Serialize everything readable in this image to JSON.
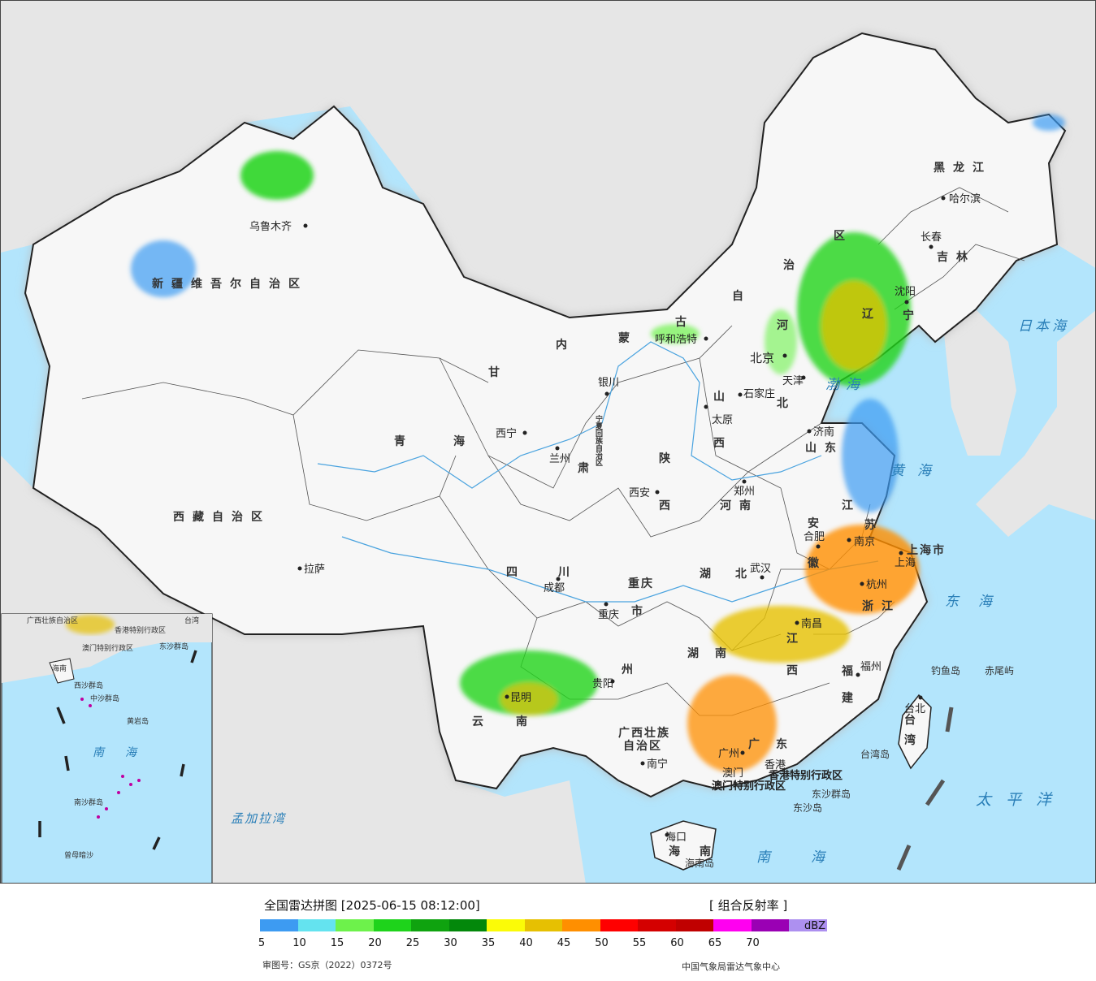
{
  "colors": {
    "ocean": "#b3e5fc",
    "foreign_land": "#e6e6e6",
    "china_land": "#f7f7f7",
    "border": "#222222",
    "river": "#4aa3df"
  },
  "legend": {
    "title": "全国雷达拼图 [2025-06-15 08:12:00]",
    "product": "[ 组合反射率 ]",
    "unit": "dBZ",
    "ticks": [
      "5",
      "10",
      "15",
      "20",
      "25",
      "30",
      "35",
      "40",
      "45",
      "50",
      "55",
      "60",
      "65",
      "70"
    ],
    "colors": [
      "#3d9bf2",
      "#64e3ef",
      "#6df24b",
      "#1ed31b",
      "#0fa30f",
      "#03880b",
      "#fbfb07",
      "#e6c002",
      "#ff8f00",
      "#ff0000",
      "#d40000",
      "#c00000",
      "#ff00f0",
      "#9a00b4",
      "#ad90f0"
    ],
    "approval": "审图号：GS京（2022）0372号",
    "producer": "中国气象局雷达气象中心"
  },
  "map": {
    "provinces": [
      {
        "id": "xinjiang",
        "text": "新疆维吾尔自治区"
      },
      {
        "id": "xizang",
        "text": "西藏自治区"
      },
      {
        "id": "qinghai-1",
        "text": "青"
      },
      {
        "id": "qinghai-2",
        "text": "海"
      },
      {
        "id": "gansu-1",
        "text": "甘"
      },
      {
        "id": "gansu-2",
        "text": "肃"
      },
      {
        "id": "neimenggu-1",
        "text": "内"
      },
      {
        "id": "neimenggu-2",
        "text": "蒙"
      },
      {
        "id": "neimenggu-3",
        "text": "古"
      },
      {
        "id": "neimenggu-4",
        "text": "自"
      },
      {
        "id": "neimenggu-5",
        "text": "治"
      },
      {
        "id": "neimenggu-6",
        "text": "区"
      },
      {
        "id": "heilongjiang",
        "text": "黑龙江"
      },
      {
        "id": "jilin",
        "text": "吉林"
      },
      {
        "id": "liaoning-1",
        "text": "辽"
      },
      {
        "id": "liaoning-2",
        "text": "宁"
      },
      {
        "id": "hebei-1",
        "text": "河"
      },
      {
        "id": "hebei-2",
        "text": "北"
      },
      {
        "id": "shanxi-1",
        "text": "山"
      },
      {
        "id": "shanxi-2",
        "text": "西"
      },
      {
        "id": "shaanxi-1",
        "text": "陕"
      },
      {
        "id": "shaanxi-2",
        "text": "西"
      },
      {
        "id": "shandong",
        "text": "山东"
      },
      {
        "id": "henan",
        "text": "河南"
      },
      {
        "id": "jiangsu-1",
        "text": "江"
      },
      {
        "id": "jiangsu-2",
        "text": "苏"
      },
      {
        "id": "anhui-1",
        "text": "安"
      },
      {
        "id": "anhui-2",
        "text": "徽"
      },
      {
        "id": "shanghai",
        "text": "上海市"
      },
      {
        "id": "zhejiang",
        "text": "浙江"
      },
      {
        "id": "hubei",
        "text": "湖北"
      },
      {
        "id": "hunan",
        "text": "湖南"
      },
      {
        "id": "jiangxi-1",
        "text": "江"
      },
      {
        "id": "jiangxi-2",
        "text": "西"
      },
      {
        "id": "fujian-1",
        "text": "福"
      },
      {
        "id": "fujian-2",
        "text": "建"
      },
      {
        "id": "taiwan-1",
        "text": "台"
      },
      {
        "id": "taiwan-2",
        "text": "湾"
      },
      {
        "id": "guangdong",
        "text": "广东"
      },
      {
        "id": "guangxi-1",
        "text": "广西壮族"
      },
      {
        "id": "guangxi-2",
        "text": "自治区"
      },
      {
        "id": "hainan-1",
        "text": "海"
      },
      {
        "id": "hainan-2",
        "text": "南"
      },
      {
        "id": "sichuan",
        "text": "四川"
      },
      {
        "id": "chongqing-1",
        "text": "重庆"
      },
      {
        "id": "chongqing-2",
        "text": "市"
      },
      {
        "id": "guizhou",
        "text": "州"
      },
      {
        "id": "yunnan",
        "text": "云南"
      },
      {
        "id": "ningxia",
        "text": "宁夏回族自治区"
      }
    ],
    "cities": [
      {
        "id": "urumqi",
        "text": "乌鲁木齐"
      },
      {
        "id": "lhasa",
        "text": "拉萨"
      },
      {
        "id": "xining",
        "text": "西宁"
      },
      {
        "id": "lanzhou",
        "text": "兰州"
      },
      {
        "id": "yinchuan",
        "text": "银川"
      },
      {
        "id": "hohhot",
        "text": "呼和浩特"
      },
      {
        "id": "harbin",
        "text": "哈尔滨"
      },
      {
        "id": "changchun",
        "text": "长春"
      },
      {
        "id": "shenyang",
        "text": "沈阳"
      },
      {
        "id": "beijing",
        "text": "北京"
      },
      {
        "id": "tianjin",
        "text": "天津"
      },
      {
        "id": "shijiazhuang",
        "text": "石家庄"
      },
      {
        "id": "taiyuan",
        "text": "太原"
      },
      {
        "id": "jinan",
        "text": "济南"
      },
      {
        "id": "zhengzhou",
        "text": "郑州"
      },
      {
        "id": "xian",
        "text": "西安"
      },
      {
        "id": "hefei",
        "text": "合肥"
      },
      {
        "id": "nanjing",
        "text": "南京"
      },
      {
        "id": "hangzhou",
        "text": "杭州"
      },
      {
        "id": "shanghai-city",
        "text": "上海"
      },
      {
        "id": "wuhan",
        "text": "武汉"
      },
      {
        "id": "nanchang",
        "text": "南昌"
      },
      {
        "id": "fuzhou",
        "text": "福州"
      },
      {
        "id": "taipei",
        "text": "台北"
      },
      {
        "id": "chengdu",
        "text": "成都"
      },
      {
        "id": "chongqing",
        "text": "重庆"
      },
      {
        "id": "guiyang",
        "text": "贵阳"
      },
      {
        "id": "kunming",
        "text": "昆明"
      },
      {
        "id": "nanning",
        "text": "南宁"
      },
      {
        "id": "guangzhou",
        "text": "广州"
      },
      {
        "id": "haikou",
        "text": "海口"
      }
    ],
    "special": [
      {
        "id": "hongkong",
        "text": "香港特别行政区"
      },
      {
        "id": "macau",
        "text": "澳门特别行政区"
      },
      {
        "id": "hk-short",
        "text": "香港"
      },
      {
        "id": "macau-short",
        "text": "澳门"
      }
    ],
    "seas": [
      {
        "id": "bohai",
        "text": "渤海"
      },
      {
        "id": "yellow-sea",
        "text": "黄海"
      },
      {
        "id": "east-sea",
        "text": "东海"
      },
      {
        "id": "south-sea",
        "text": "南海"
      },
      {
        "id": "japan-sea",
        "text": "日本海"
      },
      {
        "id": "pacific",
        "text": "太平洋"
      },
      {
        "id": "bengal",
        "text": "孟加拉湾"
      }
    ],
    "islands": [
      {
        "id": "diaoyu",
        "text": "钓鱼岛"
      },
      {
        "id": "chiwei",
        "text": "赤尾屿"
      },
      {
        "id": "taiwan-island",
        "text": "台湾岛"
      },
      {
        "id": "dongsha-islands",
        "text": "东沙群岛"
      },
      {
        "id": "dongsha-island",
        "text": "东沙岛"
      },
      {
        "id": "hainan-island",
        "text": "海南岛"
      }
    ],
    "inset": {
      "labels": [
        {
          "id": "i-guangxi",
          "text": "广西壮族自治区"
        },
        {
          "id": "i-hk",
          "text": "香港特别行政区"
        },
        {
          "id": "i-macau",
          "text": "澳门特别行政区"
        },
        {
          "id": "i-taiwan",
          "text": "台湾"
        },
        {
          "id": "i-dongsha",
          "text": "东沙群岛"
        },
        {
          "id": "i-hainan",
          "text": "海南"
        },
        {
          "id": "i-xisha",
          "text": "西沙群岛"
        },
        {
          "id": "i-zhongsha",
          "text": "中沙群岛"
        },
        {
          "id": "i-huangyan",
          "text": "黄岩岛"
        },
        {
          "id": "i-nanhai",
          "text": "南海"
        },
        {
          "id": "i-nansha",
          "text": "南沙群岛"
        },
        {
          "id": "i-zengmu",
          "text": "曾母暗沙"
        }
      ]
    }
  }
}
